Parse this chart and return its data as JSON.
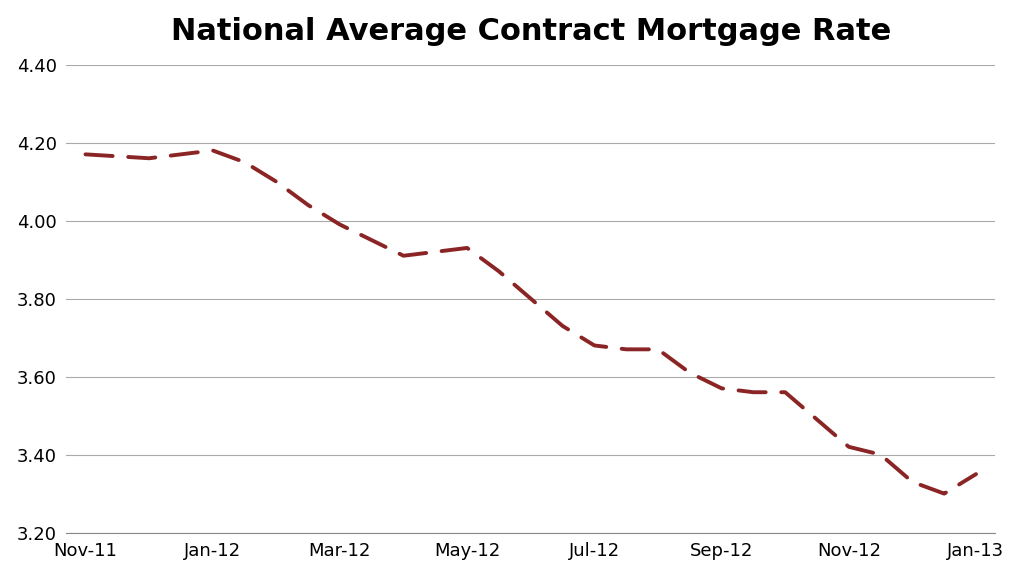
{
  "title": "National Average Contract Mortgage Rate",
  "x_labels": [
    "Nov-11",
    "Jan-12",
    "Mar-12",
    "May-12",
    "Jul-12",
    "Sep-12",
    "Nov-12",
    "Jan-13"
  ],
  "x_tick_positions": [
    0,
    2,
    4,
    6,
    8,
    10,
    12,
    14
  ],
  "data_x": [
    0,
    1,
    2,
    2.5,
    3,
    3.5,
    4,
    4.5,
    5,
    5.5,
    6,
    6.5,
    7,
    7.5,
    8,
    8.5,
    9,
    9.5,
    10,
    10.5,
    11,
    11.5,
    12,
    12.5,
    13,
    13.5,
    14
  ],
  "data_y": [
    4.17,
    4.16,
    4.18,
    4.15,
    4.1,
    4.04,
    3.99,
    3.95,
    3.91,
    3.92,
    3.93,
    3.87,
    3.8,
    3.73,
    3.68,
    3.67,
    3.67,
    3.61,
    3.57,
    3.56,
    3.56,
    3.49,
    3.42,
    3.4,
    3.33,
    3.3,
    3.35
  ],
  "line_color": "#8B2525",
  "background_color": "#ffffff",
  "plot_bg_color": "#ffffff",
  "ylim": [
    3.2,
    4.4
  ],
  "xlim": [
    -0.3,
    14.3
  ],
  "yticks": [
    3.2,
    3.4,
    3.6,
    3.8,
    4.0,
    4.2,
    4.4
  ],
  "grid_color": "#aaaaaa",
  "title_fontsize": 22,
  "tick_fontsize": 13,
  "line_width": 2.8,
  "dash_on": 7,
  "dash_off": 4
}
